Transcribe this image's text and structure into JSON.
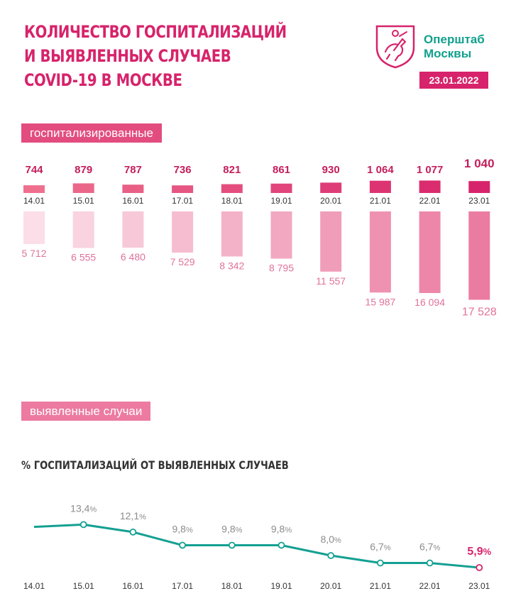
{
  "header": {
    "title_lines": [
      "КОЛИЧЕСТВО ГОСПИТАЛИЗАЦИЙ",
      "И ВЫЯВЛЕННЫХ СЛУЧАЕВ",
      "COVID-19 В МОСКВЕ"
    ],
    "org_line1": "Оперштаб",
    "org_line2": "Москвы",
    "date": "23.01.2022",
    "logo_icon": "moscow-coat-of-arms-icon"
  },
  "colors": {
    "brand": "#d7236b",
    "teal": "#12a08d"
  },
  "labels": {
    "hospitalized": "госпитализированные",
    "cases": "выявленные случаи",
    "percent_title": "% ГОСПИТАЛИЗАЦИЙ ОТ ВЫЯВЛЕННЫХ СЛУЧАЕВ"
  },
  "chart_data": [
    {
      "type": "bar",
      "title": "госпитализированные",
      "categories": [
        "14.01",
        "15.01",
        "16.01",
        "17.01",
        "18.01",
        "19.01",
        "20.01",
        "21.01",
        "22.01",
        "23.01"
      ],
      "values": [
        744,
        879,
        787,
        736,
        821,
        861,
        930,
        1064,
        1077,
        1040
      ],
      "value_labels": [
        "744",
        "879",
        "787",
        "736",
        "821",
        "861",
        "930",
        "1 064",
        "1 077",
        "1 040"
      ]
    },
    {
      "type": "bar",
      "title": "выявленные случаи",
      "categories": [
        "14.01",
        "15.01",
        "16.01",
        "17.01",
        "18.01",
        "19.01",
        "20.01",
        "21.01",
        "22.01",
        "23.01"
      ],
      "values": [
        5712,
        6555,
        6480,
        7529,
        8342,
        8795,
        11557,
        15987,
        16094,
        17528
      ],
      "value_labels": [
        "5 712",
        "6 555",
        "6 480",
        "7 529",
        "8 342",
        "8 795",
        "11 557",
        "15 987",
        "16 094",
        "17 528"
      ]
    },
    {
      "type": "line",
      "title": "% ГОСПИТАЛИЗАЦИЙ ОТ ВЫЯВЛЕННЫХ СЛУЧАЕВ",
      "categories": [
        "14.01",
        "15.01",
        "16.01",
        "17.01",
        "18.01",
        "19.01",
        "20.01",
        "21.01",
        "22.01",
        "23.01"
      ],
      "values": [
        13.0,
        13.4,
        12.1,
        9.8,
        9.8,
        9.8,
        8.0,
        6.7,
        6.7,
        5.9
      ],
      "value_labels": [
        "",
        "13,4",
        "12,1",
        "9,8",
        "9,8",
        "9,8",
        "8,0",
        "6,7",
        "6,7",
        "5,9"
      ],
      "unit": "%"
    }
  ]
}
